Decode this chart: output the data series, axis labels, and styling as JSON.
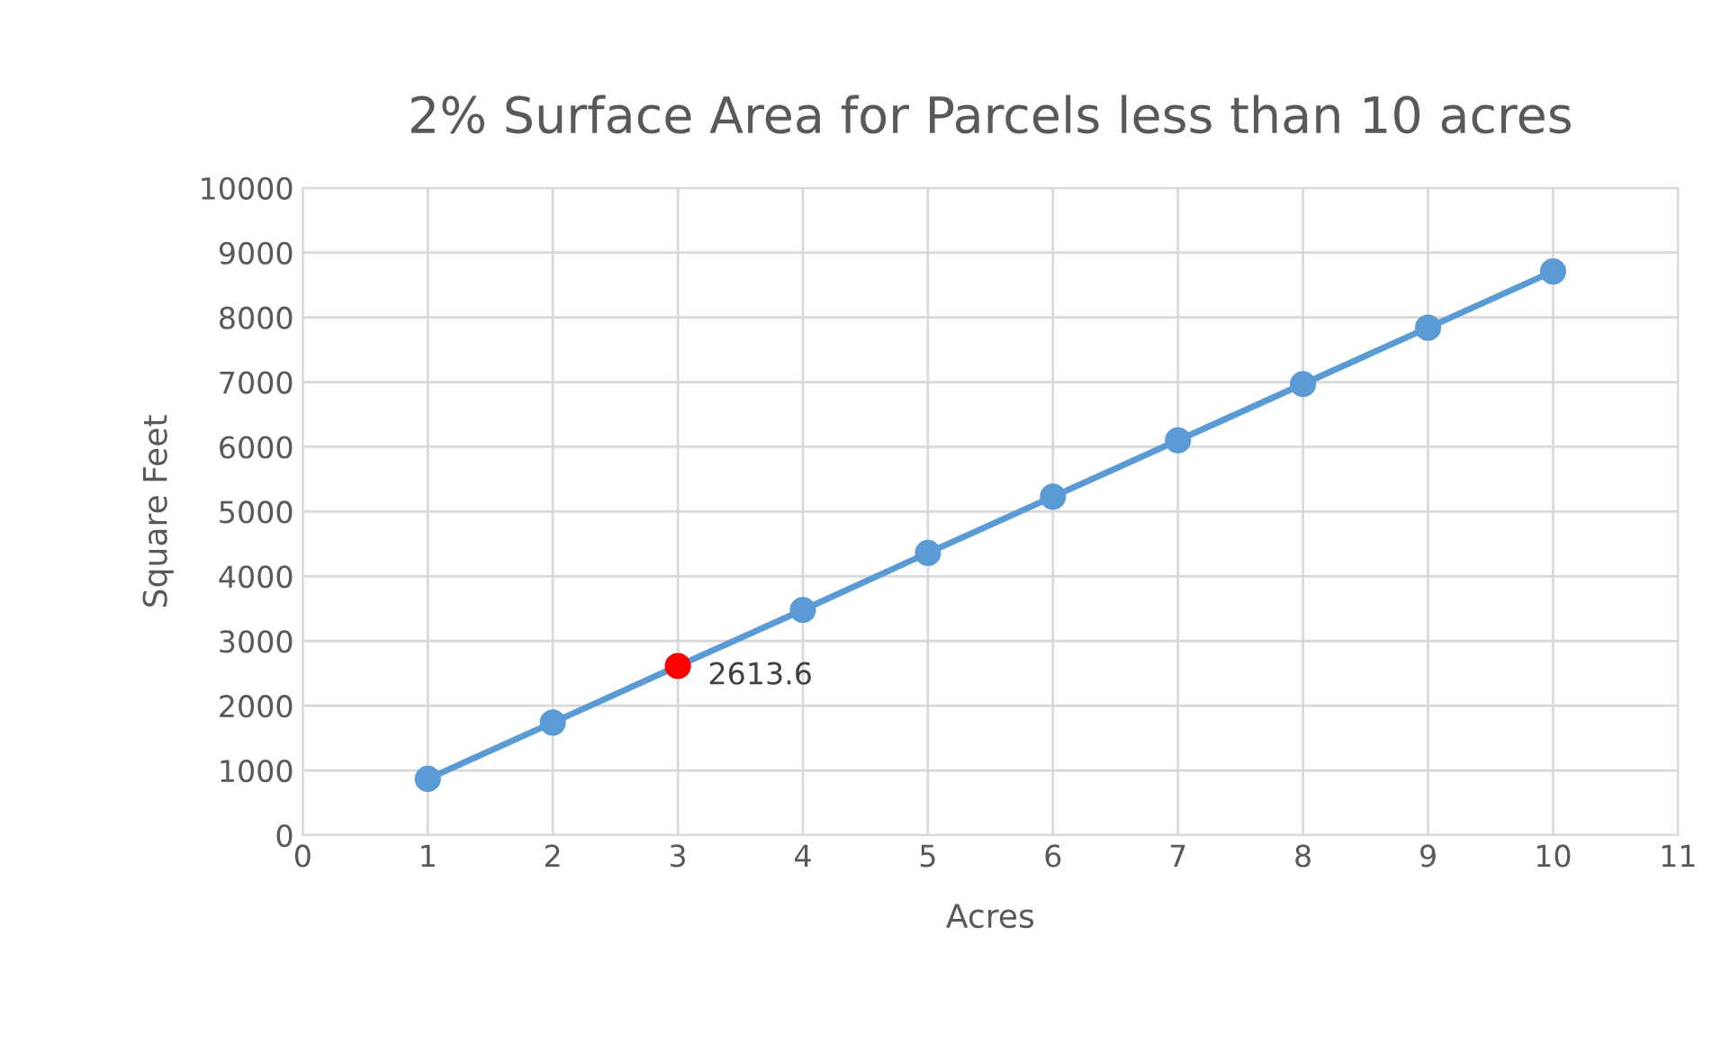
{
  "chart_data": {
    "type": "line",
    "title": "2% Surface Area for Parcels less than 10 acres",
    "xlabel": "Acres",
    "ylabel": "Square Feet",
    "x": [
      1,
      2,
      3,
      4,
      5,
      6,
      7,
      8,
      9,
      10
    ],
    "series": [
      {
        "color": "#5b9bd5",
        "values": [
          870,
          1740,
          2613.6,
          3480,
          4360,
          5230,
          6100,
          6970,
          7840,
          8710
        ],
        "colors": [
          "#5b9bd5",
          "#5b9bd5",
          "#ff0000",
          "#5b9bd5",
          "#5b9bd5",
          "#5b9bd5",
          "#5b9bd5",
          "#5b9bd5",
          "#5b9bd5",
          "#5b9bd5"
        ],
        "value_labels": [
          null,
          null,
          "2613.6",
          null,
          null,
          null,
          null,
          null,
          null,
          null
        ]
      }
    ],
    "xlim": [
      0,
      11
    ],
    "xticks": [
      0,
      1,
      2,
      3,
      4,
      5,
      6,
      7,
      8,
      9,
      10,
      11
    ],
    "ylim": [
      0,
      10000
    ],
    "yticks": [
      0,
      1000,
      2000,
      3000,
      4000,
      5000,
      6000,
      7000,
      8000,
      9000,
      10000
    ],
    "grid": true,
    "marker": "circle",
    "line_style": "solid",
    "legend": false
  }
}
